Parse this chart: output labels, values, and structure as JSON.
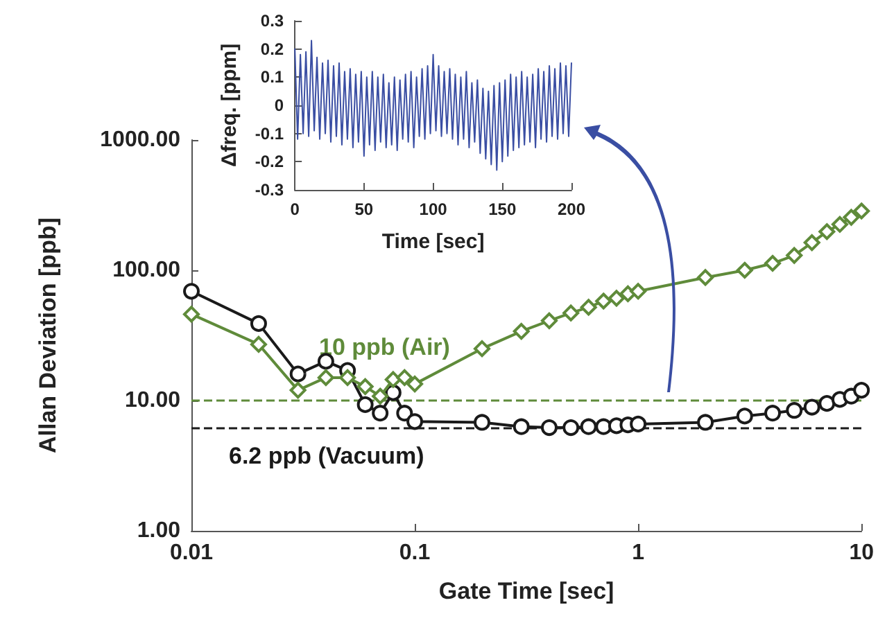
{
  "chart_data": [
    {
      "type": "line",
      "xlabel": "Gate Time [sec]",
      "ylabel": "Allan Deviation [ppb]",
      "log": "xy",
      "xlim": [
        0.01,
        10
      ],
      "xticks": [
        0.01,
        0.1,
        1,
        10
      ],
      "ylim": [
        1,
        1000
      ],
      "yticks": [
        {
          "value": 1,
          "label": "1.00"
        },
        {
          "value": 10,
          "label": "10.00"
        },
        {
          "value": 100,
          "label": "100.00"
        },
        {
          "value": 1000,
          "label": "1000.00"
        }
      ],
      "grid": false,
      "x": [
        0.01,
        0.02,
        0.03,
        0.04,
        0.05,
        0.06,
        0.07,
        0.08,
        0.09,
        0.1,
        0.2,
        0.3,
        0.4,
        0.5,
        0.6,
        0.7,
        0.8,
        0.9,
        1,
        2,
        3,
        4,
        5,
        6,
        7,
        8,
        9,
        10
      ],
      "series": [
        {
          "color": "#5f8b3a",
          "marker": "diamond",
          "values": [
            46,
            27,
            12,
            15,
            15,
            12.8,
            10.8,
            14.5,
            15,
            13.4,
            25,
            34,
            41,
            47,
            52,
            58,
            61,
            66,
            69,
            88,
            100,
            113,
            130,
            163,
            198,
            225,
            255,
            285
          ]
        },
        {
          "color": "#1a1a1a",
          "marker": "circle",
          "values": [
            69,
            39,
            16,
            20,
            17,
            9.3,
            8,
            11.5,
            8,
            6.9,
            6.8,
            6.3,
            6.2,
            6.2,
            6.3,
            6.3,
            6.4,
            6.5,
            6.6,
            6.8,
            7.6,
            8,
            8.4,
            8.9,
            9.5,
            10.2,
            10.8,
            12
          ]
        }
      ],
      "ref_lines": [
        {
          "axis": "y",
          "value": 10,
          "label": "10 ppb (Air)",
          "color": "#5f8b3a",
          "line_style": "dashed"
        },
        {
          "axis": "y",
          "value": 6.2,
          "label": "6.2 ppb (Vacuum)",
          "color": "#1a1a1a",
          "line_style": "dashed"
        }
      ]
    },
    {
      "type": "line",
      "xlabel": "Time [sec]",
      "ylabel": "Δfreq. [ppm]",
      "xlim": [
        0,
        200
      ],
      "xticks": [
        0,
        50,
        100,
        150,
        200
      ],
      "ylim": [
        -0.3,
        0.3
      ],
      "yticks": [
        -0.3,
        -0.2,
        -0.1,
        0,
        0.1,
        0.2,
        0.3
      ],
      "grid": false,
      "marker": "none",
      "x": [
        0,
        2,
        4,
        6,
        8,
        10,
        12,
        14,
        16,
        18,
        20,
        22,
        24,
        26,
        28,
        30,
        32,
        34,
        36,
        38,
        40,
        42,
        44,
        46,
        48,
        50,
        52,
        54,
        56,
        58,
        60,
        62,
        64,
        66,
        68,
        70,
        72,
        74,
        76,
        78,
        80,
        82,
        84,
        86,
        88,
        90,
        92,
        94,
        96,
        98,
        100,
        102,
        104,
        106,
        108,
        110,
        112,
        114,
        116,
        118,
        120,
        122,
        124,
        126,
        128,
        130,
        132,
        134,
        136,
        138,
        140,
        142,
        144,
        146,
        148,
        150,
        152,
        154,
        156,
        158,
        160,
        162,
        164,
        166,
        168,
        170,
        172,
        174,
        176,
        178,
        180,
        182,
        184,
        186,
        188,
        190,
        192,
        194,
        196,
        198,
        200
      ],
      "series": [
        {
          "color": "#3a4ea3",
          "values": [
            0.2,
            -0.12,
            0.18,
            -0.1,
            0.19,
            -0.11,
            0.23,
            -0.09,
            0.17,
            -0.12,
            0.15,
            -0.1,
            0.16,
            -0.13,
            0.14,
            -0.11,
            0.15,
            -0.14,
            0.12,
            -0.12,
            0.13,
            -0.15,
            0.11,
            -0.13,
            0.12,
            -0.18,
            0.1,
            -0.14,
            0.12,
            -0.16,
            0.1,
            -0.13,
            0.11,
            -0.15,
            0.08,
            -0.14,
            0.1,
            -0.16,
            0.09,
            -0.12,
            0.11,
            -0.13,
            0.12,
            -0.15,
            0.1,
            -0.11,
            0.13,
            -0.12,
            0.14,
            -0.1,
            0.18,
            -0.09,
            0.14,
            -0.11,
            0.12,
            -0.1,
            0.13,
            -0.12,
            0.11,
            -0.14,
            0.1,
            -0.12,
            0.12,
            -0.15,
            0.08,
            -0.13,
            0.09,
            -0.17,
            0.06,
            -0.19,
            0.05,
            -0.21,
            0.07,
            -0.23,
            0.08,
            -0.2,
            0.09,
            -0.18,
            0.11,
            -0.16,
            0.1,
            -0.15,
            0.12,
            -0.14,
            0.1,
            -0.13,
            0.11,
            -0.15,
            0.13,
            -0.12,
            0.12,
            -0.13,
            0.14,
            -0.11,
            0.13,
            -0.12,
            0.15,
            -0.1,
            0.14,
            -0.11,
            0.15
          ]
        }
      ]
    }
  ]
}
